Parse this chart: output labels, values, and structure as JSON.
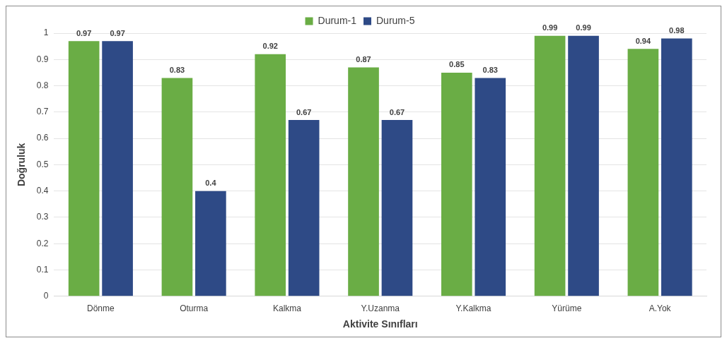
{
  "chart_data": {
    "type": "bar",
    "xlabel": "Aktivite Sınıfları",
    "ylabel": "Doğruluk",
    "categories": [
      "Dönme",
      "Oturma",
      "Kalkma",
      "Y.Uzanma",
      "Y.Kalkma",
      "Yürüme",
      "A.Yok"
    ],
    "series": [
      {
        "name": "Durum-1",
        "color": "#6aad45",
        "values": [
          0.97,
          0.83,
          0.92,
          0.87,
          0.85,
          0.99,
          0.94
        ]
      },
      {
        "name": "Durum-5",
        "color": "#2e4a86",
        "values": [
          0.97,
          0.4,
          0.67,
          0.67,
          0.83,
          0.99,
          0.98
        ]
      }
    ],
    "ylim": [
      0,
      1
    ],
    "yticks": [
      0,
      0.1,
      0.2,
      0.3,
      0.4,
      0.5,
      0.6,
      0.7,
      0.8,
      0.9,
      1
    ],
    "grid": "y",
    "legend": "top",
    "data_labels": true
  }
}
